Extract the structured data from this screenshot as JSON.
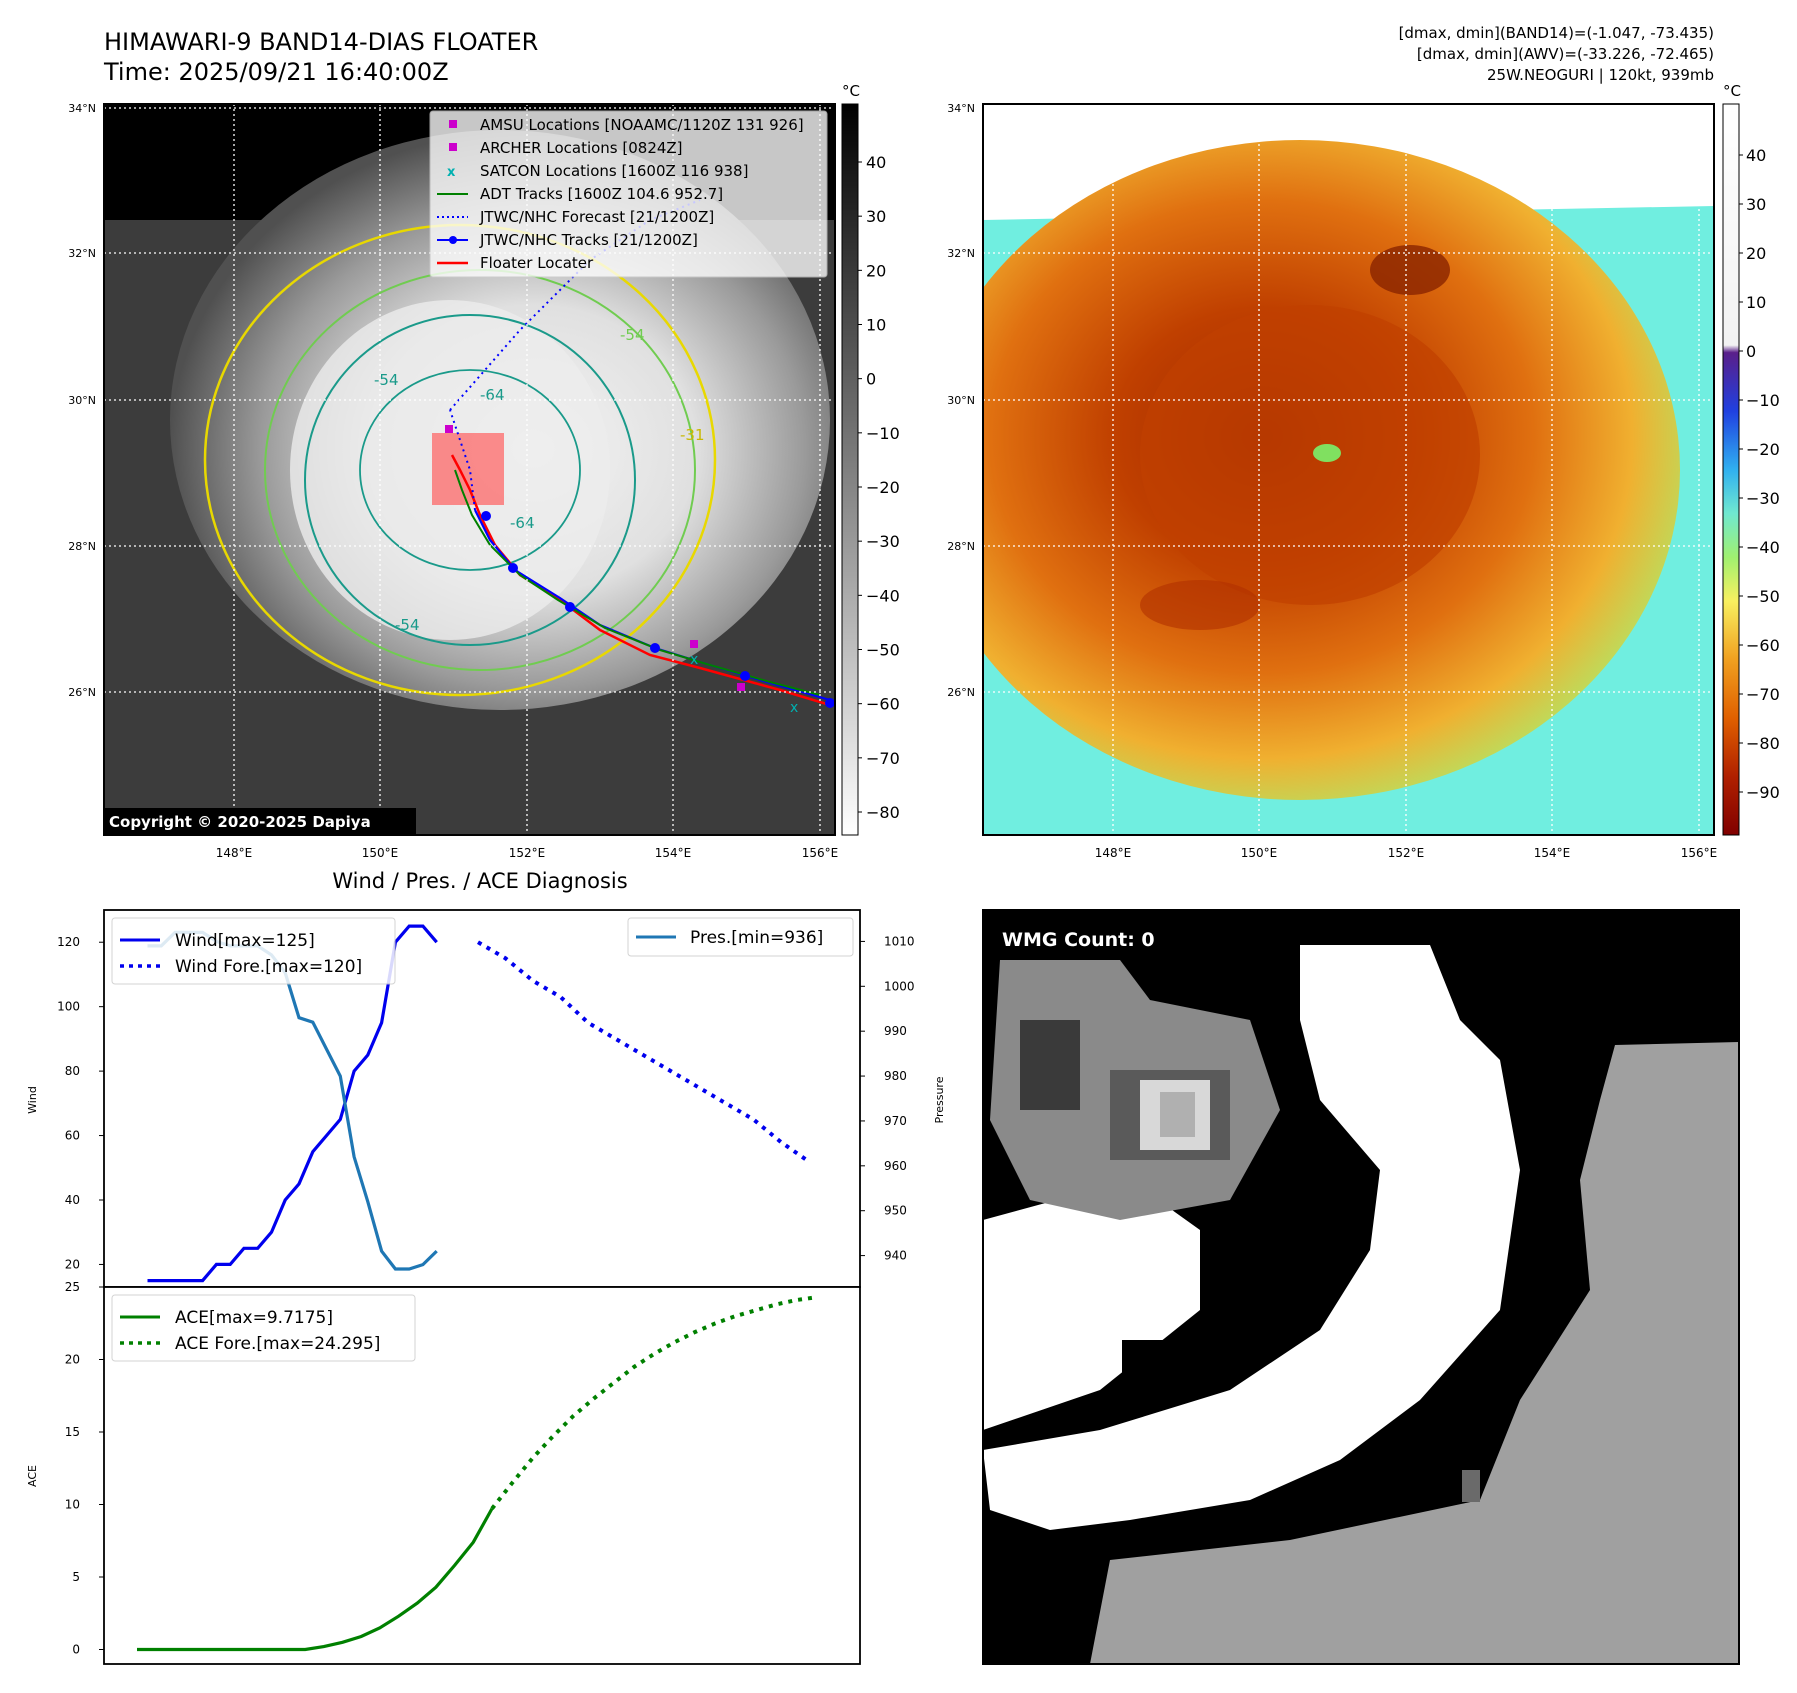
{
  "header": {
    "title_line1": "HIMAWARI-9 BAND14-DIAS FLOATER",
    "title_line2": "Time: 2025/09/21 16:40:00Z",
    "info_line1": "[dmax, dmin](BAND14)=(-1.047, -73.435)",
    "info_line2": "[dmax, dmin](AWV)=(-33.226, -72.465)",
    "info_line3": "25W.NEOGURI | 120kt, 939mb"
  },
  "map_axes": {
    "lat_ticks": [
      "34°N",
      "32°N",
      "30°N",
      "28°N",
      "26°N"
    ],
    "lon_ticks": [
      "148°E",
      "150°E",
      "152°E",
      "154°E",
      "156°E"
    ]
  },
  "ir_panel": {
    "colorbar_unit": "°C",
    "colorbar_ticks": [
      "40",
      "30",
      "20",
      "10",
      "0",
      "−10",
      "−20",
      "−30",
      "−40",
      "−50",
      "−60",
      "−70",
      "−80"
    ],
    "contour_labels": [
      "-54",
      "-64",
      "-64",
      "-54",
      "-54",
      "-31"
    ],
    "copyright": "Copyright © 2020-2025 Dapiya",
    "legend": [
      {
        "label": "AMSU Locations [NOAAMC/1120Z 131 926]",
        "color": "#cc00cc",
        "marker": "square"
      },
      {
        "label": "ARCHER Locations [0824Z]",
        "color": "#cc00cc",
        "marker": "square"
      },
      {
        "label": "SATCON Locations [1600Z 116 938]",
        "color": "#00c0c0",
        "marker": "x"
      },
      {
        "label": "ADT Tracks [1600Z 104.6 952.7]",
        "color": "#008000",
        "marker": "line"
      },
      {
        "label": "JTWC/NHC Forecast [21/1200Z]",
        "color": "#0000ff",
        "marker": "dotted"
      },
      {
        "label": "JTWC/NHC Tracks [21/1200Z]",
        "color": "#0000ff",
        "marker": "line-dot"
      },
      {
        "label": "Floater Locater",
        "color": "#ff0000",
        "marker": "line"
      }
    ]
  },
  "awv_panel": {
    "colorbar_unit": "°C",
    "colorbar_ticks": [
      "40",
      "30",
      "20",
      "10",
      "0",
      "−10",
      "−20",
      "−30",
      "−40",
      "−50",
      "−60",
      "−70",
      "−80",
      "−90"
    ]
  },
  "wmg_panel": {
    "label": "WMG Count: 0"
  },
  "chart_data": [
    {
      "type": "line",
      "title": "Wind / Pres. / ACE Diagnosis",
      "ylabel": "Wind",
      "y2label": "Pressure",
      "ylim": [
        13,
        130
      ],
      "y2lim": [
        933,
        1017
      ],
      "yticks": [
        20,
        40,
        60,
        80,
        100,
        120
      ],
      "y2ticks": [
        940,
        950,
        960,
        970,
        980,
        990,
        1000,
        1010
      ],
      "series": [
        {
          "name": "Wind[max=125]",
          "color": "#0000ee",
          "style": "solid",
          "axis": "left",
          "x": [
            0,
            1,
            2,
            3,
            4,
            5,
            6,
            7,
            8,
            9,
            10,
            11,
            12,
            13,
            14,
            15,
            16,
            17,
            18,
            19,
            20,
            21,
            22,
            23,
            24
          ],
          "values": [
            15,
            15,
            15,
            15,
            15,
            20,
            20,
            25,
            25,
            30,
            40,
            45,
            55,
            60,
            65,
            80,
            85,
            95,
            120,
            125,
            125,
            120,
            null,
            null,
            null
          ]
        },
        {
          "name": "Wind Fore.[max=120]",
          "color": "#0000ee",
          "style": "dotted",
          "axis": "left",
          "x": [
            24,
            26,
            28,
            30,
            32,
            34,
            36,
            38,
            40,
            42,
            44,
            46,
            48
          ],
          "values": [
            120,
            115,
            108,
            103,
            95,
            90,
            85,
            80,
            75,
            70,
            65,
            58,
            52
          ]
        },
        {
          "name": "Pres.[min=936]",
          "color": "#1f77b4",
          "style": "solid",
          "axis": "right",
          "x": [
            0,
            1,
            2,
            3,
            4,
            5,
            6,
            7,
            8,
            9,
            10,
            11,
            12,
            13,
            14,
            15,
            16,
            17,
            18,
            19,
            20,
            21
          ],
          "values": [
            1009,
            1009,
            1012,
            1012,
            1012,
            1010,
            1009,
            1009,
            1009,
            1007,
            1003,
            993,
            992,
            986,
            980,
            962,
            952,
            941,
            937,
            937,
            938,
            941
          ]
        }
      ],
      "wind_axis_x_range": [
        0,
        46
      ]
    },
    {
      "type": "line",
      "ylabel": "ACE",
      "ylim": [
        -1,
        25
      ],
      "yticks": [
        0,
        5,
        10,
        15,
        20,
        25
      ],
      "series": [
        {
          "name": "ACE[max=9.7175]",
          "color": "#008000",
          "style": "solid",
          "values": [
            0,
            0,
            0,
            0,
            0,
            0,
            0,
            0,
            0,
            0,
            0.2,
            0.5,
            0.9,
            1.5,
            2.3,
            3.2,
            4.3,
            5.8,
            7.4,
            9.7175
          ]
        },
        {
          "name": "ACE Fore.[max=24.295]",
          "color": "#008000",
          "style": "dotted",
          "values": [
            9.7175,
            11.5,
            13.2,
            14.7,
            16.1,
            17.3,
            18.4,
            19.5,
            20.4,
            21.2,
            21.9,
            22.5,
            23.0,
            23.4,
            23.8,
            24.1,
            24.295
          ]
        }
      ]
    }
  ]
}
